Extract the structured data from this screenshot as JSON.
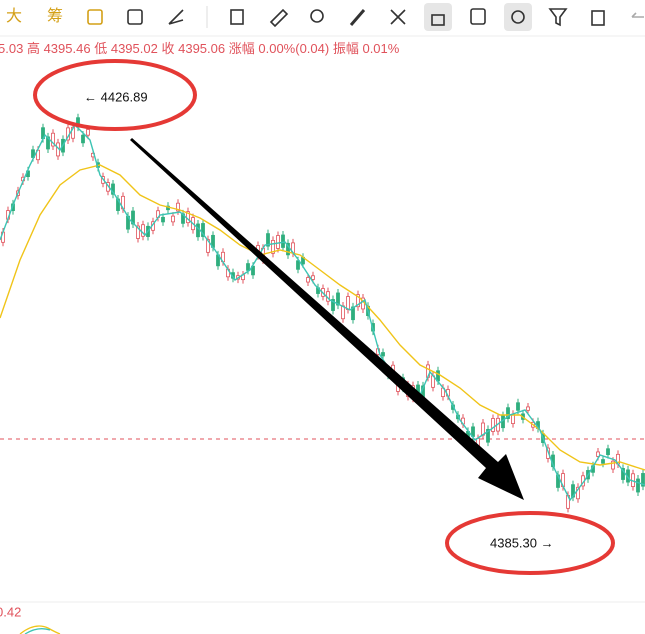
{
  "toolbar": {
    "items": [
      "大",
      "筹"
    ]
  },
  "info_bar": {
    "open_partial": "5.03",
    "high_label": "高",
    "high": "4395.46",
    "low_label": "低",
    "low": "4395.02",
    "close_label": "收",
    "close": "4395.06",
    "change_label": "涨幅",
    "change": "0.00%(0.04)",
    "amplitude_label": "振幅",
    "amplitude": "0.01%"
  },
  "annotations": {
    "high_marker": "← 4426.89",
    "low_marker": "4385.30 →"
  },
  "sub_chart": {
    "value": "0.42"
  }
}
